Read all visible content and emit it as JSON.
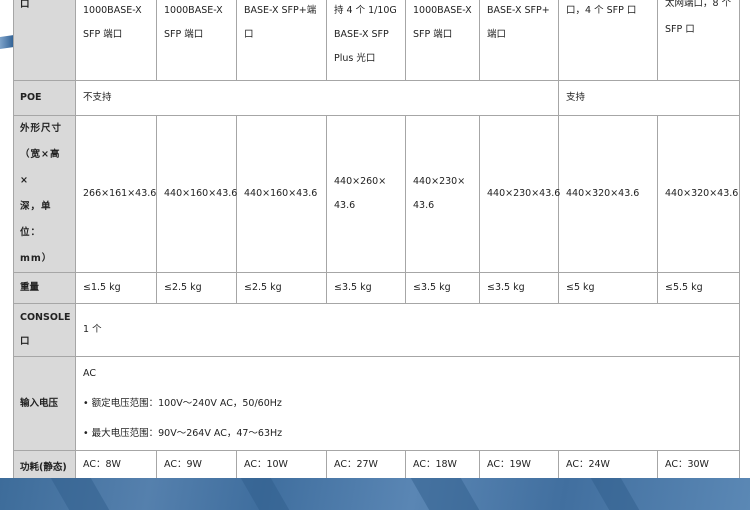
{
  "rows": {
    "ports": {
      "label": "口",
      "cells": [
        "1000BASE-X\nSFP 端口",
        "1000BASE-X\nSFP 端口",
        "BASE-X SFP+端\n口",
        "持 4 个 1/10G\nBASE-X SFP\nPlus 光口",
        "1000BASE-X\nSFP 端口",
        "BASE-X SFP+\n端口",
        "口，4 个 SFP 口",
        "太网端口，8 个\nSFP 口"
      ]
    },
    "poe": {
      "label": "POE",
      "no": "不支持",
      "yes": "支持"
    },
    "size": {
      "label": "外形尺寸\n（宽×高×\n深，单位：\nmm）",
      "cells": [
        "266×161×43.6",
        "440×160×43.6",
        "440×160×43.6",
        "440×260×\n43.6",
        "440×230×\n43.6",
        "440×230×43.6",
        "440×320×43.6",
        "440×320×43.6"
      ]
    },
    "weight": {
      "label": "重量",
      "cells": [
        "≤1.5 kg",
        "≤2.5 kg",
        "≤2.5 kg",
        "≤3.5 kg",
        "≤3.5 kg",
        "≤3.5 kg",
        "≤5 kg",
        "≤5.5 kg"
      ]
    },
    "console": {
      "label": "CONSOLE\n口",
      "value": "1 个"
    },
    "voltage": {
      "label": "输入电压",
      "lines": [
        "AC",
        "•  额定电压范围：100V～240V AC，50/60Hz",
        "•  最大电压范围：90V～264V AC，47～63Hz"
      ]
    },
    "power": {
      "label": "功耗(静态)",
      "cells": [
        "AC：8W",
        "AC：9W",
        "AC：10W",
        "AC：27W",
        "AC：18W",
        "AC：19W",
        "AC：24W",
        "AC：30W"
      ]
    }
  }
}
